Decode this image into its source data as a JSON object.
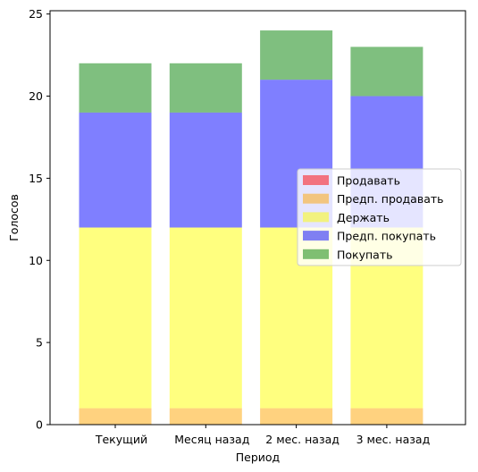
{
  "chart_data": {
    "type": "bar",
    "stacked": true,
    "xlabel": "Период",
    "ylabel": "Голосов",
    "categories": [
      "Текущий",
      "Месяц назад",
      "2 мес. назад",
      "3 мес. назад"
    ],
    "ylim": [
      0,
      25.2
    ],
    "yticks": [
      0,
      5,
      10,
      15,
      20,
      25
    ],
    "legend_position": "center-right",
    "grid": false,
    "series": [
      {
        "name": "Продавать",
        "color": "#ff0000",
        "values": [
          0,
          0,
          0,
          0
        ]
      },
      {
        "name": "Предп. продавать",
        "color": "#ffa500",
        "values": [
          1,
          1,
          1,
          1
        ]
      },
      {
        "name": "Держать",
        "color": "#ffff00",
        "values": [
          11,
          11,
          11,
          11
        ]
      },
      {
        "name": "Предп. покупать",
        "color": "#0000ff",
        "values": [
          7,
          7,
          9,
          8
        ]
      },
      {
        "name": "Покупать",
        "color": "#008000",
        "values": [
          3,
          3,
          3,
          3
        ]
      }
    ]
  }
}
